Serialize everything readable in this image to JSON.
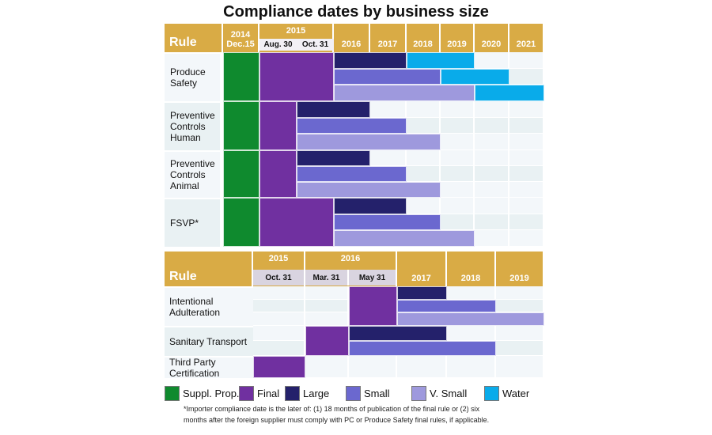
{
  "title": "Compliance dates by business size",
  "colors": {
    "header": "#d9ab45",
    "suppl_prop": "#0f8a2e",
    "final": "#7030a0",
    "large": "#24216b",
    "small": "#6b68cf",
    "v_small": "#9e99dd",
    "water": "#09abea",
    "bg_a": "#f3f7fa",
    "bg_b": "#e9f1f3"
  },
  "legend": [
    {
      "key": "suppl_prop",
      "label": "Suppl. Prop."
    },
    {
      "key": "final",
      "label": "Final"
    },
    {
      "key": "large",
      "label": "Large"
    },
    {
      "key": "small",
      "label": "Small"
    },
    {
      "key": "v_small",
      "label": "V. Small"
    },
    {
      "key": "water",
      "label": "Water"
    }
  ],
  "footnote": [
    "*Importer compliance date is the later of: (1) 18 months of publication of the final rule or (2) six",
    "months after the foreign supplier must comply with PC or Produce Safety final rules, if applicable."
  ],
  "chart_data": [
    {
      "type": "table",
      "title": "Compliance dates by business size",
      "rule_header": "Rule",
      "columns": [
        {
          "year": "2014",
          "sub": "Dec.15"
        },
        {
          "year": "2015",
          "sub": "Aug. 30"
        },
        {
          "year": "2015",
          "sub": "Oct. 31"
        },
        {
          "year": "2016",
          "sub": ""
        },
        {
          "year": "2017",
          "sub": ""
        },
        {
          "year": "2018",
          "sub": ""
        },
        {
          "year": "2019",
          "sub": ""
        },
        {
          "year": "2020",
          "sub": ""
        },
        {
          "year": "2021",
          "sub": ""
        }
      ],
      "rows": [
        {
          "rule": "Produce Safety",
          "lines": 3,
          "bars": [
            {
              "type": "suppl_prop",
              "line": 0,
              "span": 3,
              "start": 0,
              "end": 1
            },
            {
              "type": "final",
              "line": 0,
              "span": 3,
              "start": 1,
              "end": 3
            },
            {
              "type": "large",
              "line": 0,
              "start": 3,
              "end": 5
            },
            {
              "type": "water",
              "line": 0,
              "start": 5,
              "end": 7
            },
            {
              "type": "small",
              "line": 1,
              "start": 3,
              "end": 6
            },
            {
              "type": "water",
              "line": 1,
              "start": 6,
              "end": 8
            },
            {
              "type": "v_small",
              "line": 2,
              "start": 3,
              "end": 7
            },
            {
              "type": "water",
              "line": 2,
              "start": 7,
              "end": 9
            }
          ]
        },
        {
          "rule": "Preventive Controls Human",
          "lines": 3,
          "bars": [
            {
              "type": "suppl_prop",
              "line": 0,
              "span": 3,
              "start": 0,
              "end": 1
            },
            {
              "type": "final",
              "line": 0,
              "span": 3,
              "start": 1,
              "end": 2
            },
            {
              "type": "large",
              "line": 0,
              "start": 2,
              "end": 4
            },
            {
              "type": "small",
              "line": 1,
              "start": 2,
              "end": 5
            },
            {
              "type": "v_small",
              "line": 2,
              "start": 2,
              "end": 6
            }
          ]
        },
        {
          "rule": "Preventive Controls Animal",
          "lines": 3,
          "bars": [
            {
              "type": "suppl_prop",
              "line": 0,
              "span": 3,
              "start": 0,
              "end": 1
            },
            {
              "type": "final",
              "line": 0,
              "span": 3,
              "start": 1,
              "end": 2
            },
            {
              "type": "large",
              "line": 0,
              "start": 2,
              "end": 4
            },
            {
              "type": "small",
              "line": 1,
              "start": 2,
              "end": 5
            },
            {
              "type": "v_small",
              "line": 2,
              "start": 2,
              "end": 6
            }
          ]
        },
        {
          "rule": "FSVP*",
          "lines": 3,
          "bars": [
            {
              "type": "suppl_prop",
              "line": 0,
              "span": 3,
              "start": 0,
              "end": 1
            },
            {
              "type": "final",
              "line": 0,
              "span": 3,
              "start": 1,
              "end": 3
            },
            {
              "type": "large",
              "line": 0,
              "start": 3,
              "end": 5
            },
            {
              "type": "small",
              "line": 1,
              "start": 3,
              "end": 6
            },
            {
              "type": "v_small",
              "line": 2,
              "start": 3,
              "end": 7
            }
          ]
        }
      ]
    },
    {
      "type": "table",
      "rule_header": "Rule",
      "columns": [
        {
          "year": "2015",
          "sub": "Oct. 31"
        },
        {
          "year": "2016",
          "sub": "Mar. 31"
        },
        {
          "year": "2016",
          "sub": "May 31"
        },
        {
          "year": "2017",
          "sub": ""
        },
        {
          "year": "2018",
          "sub": ""
        },
        {
          "year": "2019",
          "sub": ""
        }
      ],
      "rows": [
        {
          "rule": "Intentional Adulteration",
          "lines": 3,
          "bars": [
            {
              "type": "final",
              "line": 0,
              "span": 3,
              "start": 2,
              "end": 3
            },
            {
              "type": "large",
              "line": 0,
              "start": 3,
              "end": 4
            },
            {
              "type": "small",
              "line": 1,
              "start": 3,
              "end": 5
            },
            {
              "type": "v_small",
              "line": 2,
              "start": 3,
              "end": 6
            }
          ]
        },
        {
          "rule": "Sanitary Transport",
          "lines": 2,
          "bars": [
            {
              "type": "final",
              "line": 0,
              "span": 2,
              "start": 1,
              "end": 2
            },
            {
              "type": "large",
              "line": 0,
              "start": 2,
              "end": 4
            },
            {
              "type": "small",
              "line": 1,
              "start": 2,
              "end": 5
            }
          ]
        },
        {
          "rule": "Third Party Certification",
          "lines": 1,
          "bars": [
            {
              "type": "final",
              "line": 0,
              "start": 0,
              "end": 1
            }
          ]
        }
      ]
    }
  ]
}
